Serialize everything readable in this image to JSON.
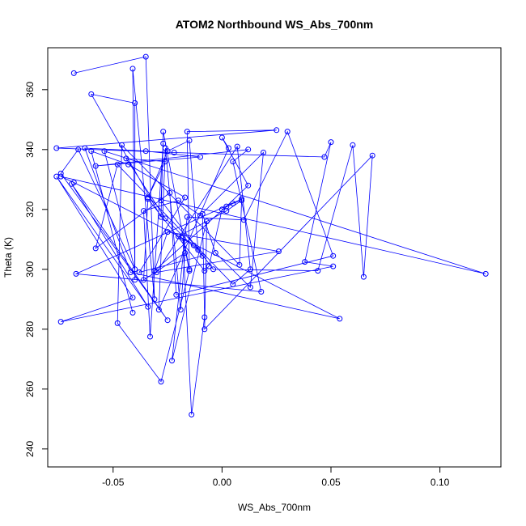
{
  "chart_data": {
    "type": "line",
    "title": "ATOM2 Northbound WS_Abs_700nm",
    "xlabel": "WS_Abs_700nm",
    "ylabel": "Theta (K)",
    "xlim": [
      -0.08,
      0.128
    ],
    "ylim": [
      234,
      374
    ],
    "x_ticks": [
      -0.05,
      0.0,
      0.05,
      0.1
    ],
    "x_tick_labels": [
      "-0.05",
      "0.00",
      "0.05",
      "0.10"
    ],
    "y_ticks": [
      240,
      260,
      280,
      300,
      320,
      340,
      360
    ],
    "y_tick_labels": [
      "240",
      "260",
      "280",
      "300",
      "320",
      "340",
      "360"
    ],
    "grid": false,
    "line_color": "#0000ff",
    "marker": "open-circle",
    "points": [
      {
        "x": -0.068,
        "y": 365.5
      },
      {
        "x": -0.035,
        "y": 371.0
      },
      {
        "x": -0.031,
        "y": 290.0
      },
      {
        "x": -0.041,
        "y": 367.0
      },
      {
        "x": -0.04,
        "y": 296.5
      },
      {
        "x": -0.04,
        "y": 355.5
      },
      {
        "x": -0.06,
        "y": 358.5
      },
      {
        "x": -0.028,
        "y": 317.5
      },
      {
        "x": -0.027,
        "y": 346.0
      },
      {
        "x": -0.015,
        "y": 300.0
      },
      {
        "x": -0.016,
        "y": 346.0
      },
      {
        "x": 0.025,
        "y": 346.5
      },
      {
        "x": -0.076,
        "y": 340.5
      },
      {
        "x": -0.022,
        "y": 339.0
      },
      {
        "x": 0.047,
        "y": 337.5
      },
      {
        "x": 0.05,
        "y": 342.5
      },
      {
        "x": 0.038,
        "y": 302.5
      },
      {
        "x": 0.051,
        "y": 301.0
      },
      {
        "x": -0.074,
        "y": 282.5
      },
      {
        "x": -0.041,
        "y": 290.5
      },
      {
        "x": -0.076,
        "y": 331.0
      },
      {
        "x": -0.034,
        "y": 287.5
      },
      {
        "x": -0.069,
        "y": 328.5
      },
      {
        "x": -0.025,
        "y": 283.0
      },
      {
        "x": -0.074,
        "y": 332.0
      },
      {
        "x": -0.066,
        "y": 340.0
      },
      {
        "x": -0.04,
        "y": 300.0
      },
      {
        "x": -0.054,
        "y": 339.5
      },
      {
        "x": 0.121,
        "y": 298.5
      },
      {
        "x": -0.074,
        "y": 331.0
      },
      {
        "x": -0.068,
        "y": 329.0
      },
      {
        "x": 0.054,
        "y": 283.5
      },
      {
        "x": -0.042,
        "y": 299.0
      },
      {
        "x": -0.063,
        "y": 340.5
      },
      {
        "x": -0.035,
        "y": 339.5
      },
      {
        "x": -0.01,
        "y": 337.5
      },
      {
        "x": -0.058,
        "y": 334.5
      },
      {
        "x": 0.012,
        "y": 340.0
      },
      {
        "x": 0.005,
        "y": 336.0
      },
      {
        "x": 0.018,
        "y": 292.5
      },
      {
        "x": -0.067,
        "y": 298.5
      },
      {
        "x": 0.009,
        "y": 323.5
      },
      {
        "x": 0.008,
        "y": 301.5
      },
      {
        "x": -0.046,
        "y": 341.5
      },
      {
        "x": -0.048,
        "y": 282.0
      },
      {
        "x": -0.028,
        "y": 262.5
      },
      {
        "x": -0.015,
        "y": 299.5
      },
      {
        "x": -0.018,
        "y": 310.5
      },
      {
        "x": -0.014,
        "y": 251.5
      },
      {
        "x": -0.008,
        "y": 284.0
      },
      {
        "x": -0.009,
        "y": 318.5
      },
      {
        "x": -0.003,
        "y": 305.5
      },
      {
        "x": 0.013,
        "y": 294.0
      },
      {
        "x": 0.019,
        "y": 339.0
      },
      {
        "x": -0.01,
        "y": 318.0
      },
      {
        "x": -0.02,
        "y": 323.0
      },
      {
        "x": -0.036,
        "y": 319.5
      },
      {
        "x": -0.033,
        "y": 277.5
      },
      {
        "x": -0.027,
        "y": 342.0
      },
      {
        "x": -0.028,
        "y": 323.0
      },
      {
        "x": -0.004,
        "y": 300.0
      },
      {
        "x": 0.044,
        "y": 299.5
      },
      {
        "x": 0.06,
        "y": 341.5
      },
      {
        "x": 0.065,
        "y": 297.5
      },
      {
        "x": 0.069,
        "y": 338.0
      },
      {
        "x": -0.008,
        "y": 280.0
      },
      {
        "x": -0.007,
        "y": 316.0
      },
      {
        "x": -0.023,
        "y": 269.5
      },
      {
        "x": -0.016,
        "y": 317.5
      },
      {
        "x": 0.01,
        "y": 316.5
      },
      {
        "x": 0.03,
        "y": 346.0
      },
      {
        "x": 0.051,
        "y": 304.5
      },
      {
        "x": -0.021,
        "y": 291.5
      },
      {
        "x": -0.024,
        "y": 325.5
      },
      {
        "x": -0.058,
        "y": 307.0
      },
      {
        "x": -0.048,
        "y": 335.0
      },
      {
        "x": 0.005,
        "y": 295.0
      },
      {
        "x": 0.013,
        "y": 300.0
      },
      {
        "x": 0.007,
        "y": 341.0
      },
      {
        "x": -0.03,
        "y": 299.0
      },
      {
        "x": 0.026,
        "y": 306.0
      },
      {
        "x": -0.025,
        "y": 312.5
      },
      {
        "x": -0.031,
        "y": 299.5
      },
      {
        "x": 0.002,
        "y": 321.0
      },
      {
        "x": 0.012,
        "y": 328.0
      },
      {
        "x": 0.0,
        "y": 344.0
      },
      {
        "x": 0.003,
        "y": 340.5
      },
      {
        "x": -0.029,
        "y": 286.5
      },
      {
        "x": -0.026,
        "y": 340.5
      },
      {
        "x": -0.019,
        "y": 286.5
      },
      {
        "x": -0.017,
        "y": 305.5
      },
      {
        "x": -0.036,
        "y": 296.5
      },
      {
        "x": -0.034,
        "y": 323.5
      },
      {
        "x": -0.008,
        "y": 299.5
      },
      {
        "x": -0.006,
        "y": 301.0
      },
      {
        "x": 0.0,
        "y": 320.0
      },
      {
        "x": 0.005,
        "y": 322.0
      },
      {
        "x": 0.009,
        "y": 323.0
      },
      {
        "x": 0.002,
        "y": 319.5
      },
      {
        "x": -0.02,
        "y": 311.0
      },
      {
        "x": -0.013,
        "y": 308.0
      },
      {
        "x": -0.011,
        "y": 306.5
      },
      {
        "x": -0.015,
        "y": 343.0
      },
      {
        "x": -0.025,
        "y": 339.5
      },
      {
        "x": -0.034,
        "y": 324.0
      },
      {
        "x": -0.026,
        "y": 336.0
      },
      {
        "x": -0.044,
        "y": 337.0
      },
      {
        "x": -0.026,
        "y": 317.0
      },
      {
        "x": -0.009,
        "y": 304.5
      },
      {
        "x": -0.038,
        "y": 299.0
      },
      {
        "x": -0.017,
        "y": 324.0
      },
      {
        "x": -0.043,
        "y": 335.0
      },
      {
        "x": -0.06,
        "y": 339.5
      },
      {
        "x": -0.041,
        "y": 285.5
      }
    ]
  }
}
